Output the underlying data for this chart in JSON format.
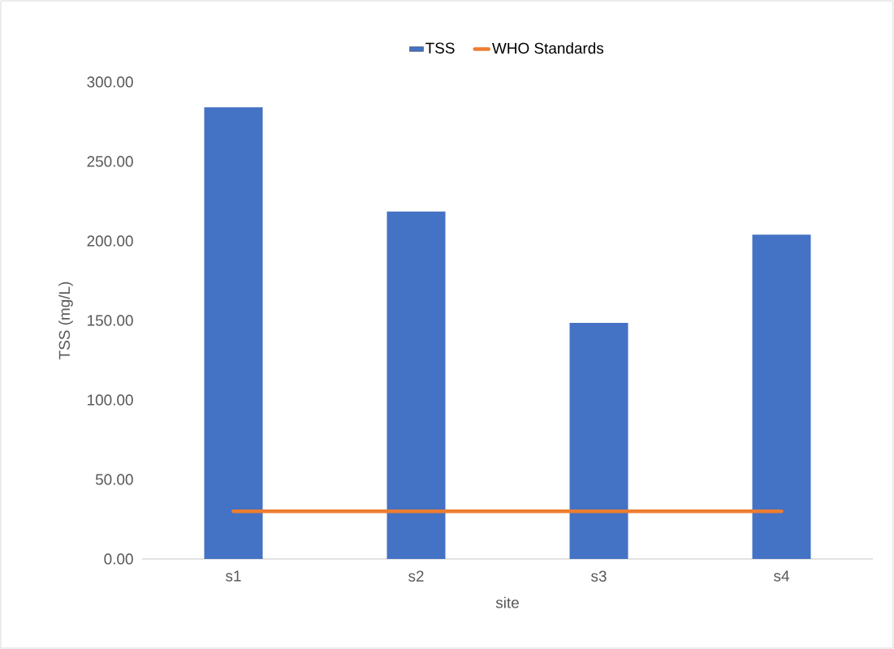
{
  "chart_data": {
    "type": "bar",
    "xlabel": "site",
    "ylabel": "TSS (mg/L)",
    "categories": [
      "s1",
      "s2",
      "s3",
      "s4"
    ],
    "series": [
      {
        "name": "TSS",
        "color": "#4472c4",
        "values": [
          284,
          218.5,
          148.5,
          204
        ]
      },
      {
        "name": "WHO Standards",
        "type": "line",
        "color": "#ed7d31",
        "values": [
          30,
          30,
          30,
          30
        ]
      }
    ],
    "ylim": [
      0,
      300
    ],
    "yticks": [
      {
        "value": 0,
        "label": "0.00"
      },
      {
        "value": 50,
        "label": "50.00"
      },
      {
        "value": 100,
        "label": "100.00"
      },
      {
        "value": 150,
        "label": "150.00"
      },
      {
        "value": 200,
        "label": "200.00"
      },
      {
        "value": 250,
        "label": "250.00"
      },
      {
        "value": 300,
        "label": "300.00"
      }
    ],
    "legend": "top",
    "grid": false
  }
}
